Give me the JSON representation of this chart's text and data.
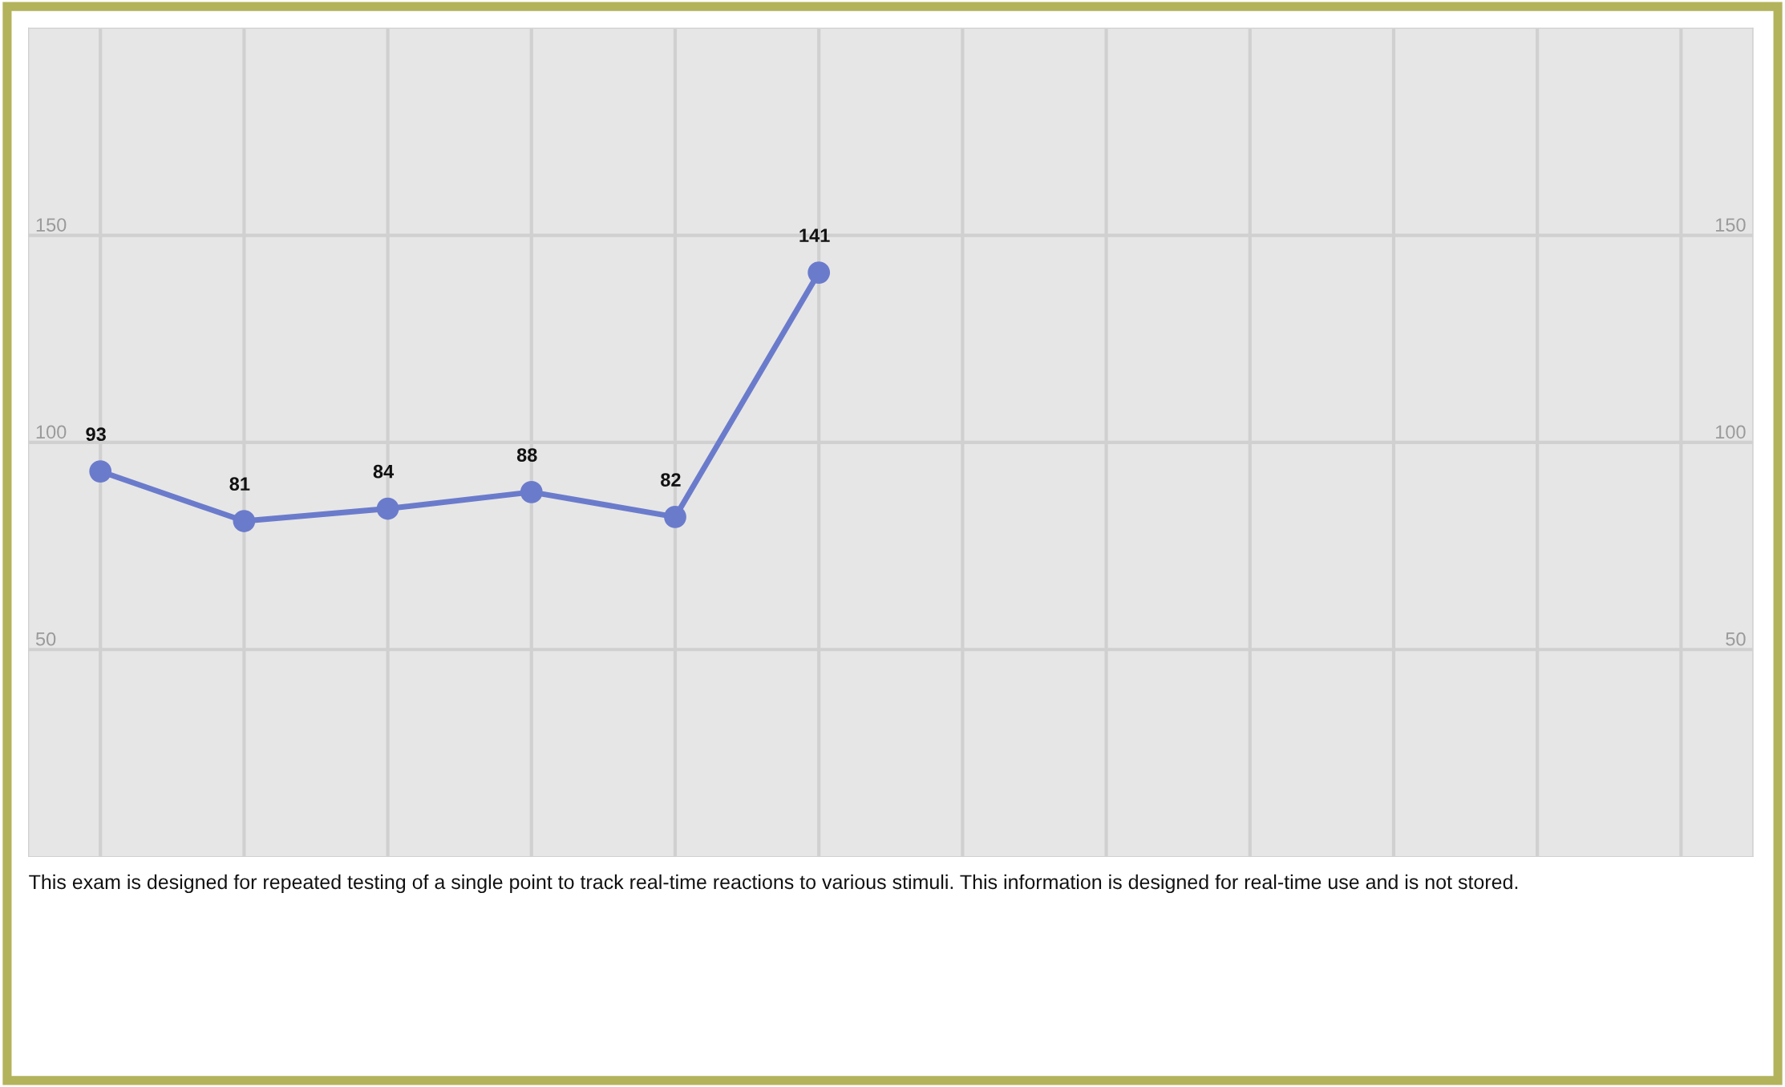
{
  "chart_data": {
    "type": "line",
    "categories": [
      null,
      null,
      null,
      null,
      null,
      null,
      null,
      null,
      null,
      null,
      null,
      null
    ],
    "series": [
      {
        "color": "#6b7bcc",
        "values": [
          93,
          81,
          84,
          88,
          82,
          141,
          null,
          null,
          null,
          null,
          null,
          null
        ]
      }
    ],
    "ylim": [
      0,
      200
    ],
    "yticks": [
      50,
      100,
      150
    ],
    "y2lim": [
      0,
      200
    ],
    "y2ticks": [
      50,
      100,
      150
    ],
    "data_labels": true,
    "grid": true,
    "marker": "circle",
    "line_style": "solid",
    "annotations": [
      "This exam is designed for repeated testing of a single point to track real-time reactions to various stimuli. This information is designed for real-time use and is not stored."
    ]
  }
}
